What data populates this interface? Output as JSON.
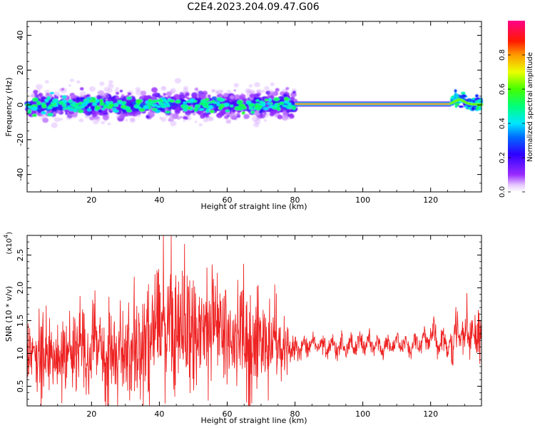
{
  "figure_title": "C2E4.2023.204.09.47.G06",
  "chart_data": [
    {
      "type": "heatmap",
      "xlabel": "Height of straight line (km)",
      "ylabel": "Frequency (Hz)",
      "xlim": [
        1,
        135
      ],
      "ylim": [
        -50,
        48
      ],
      "xticks": [
        20,
        40,
        60,
        80,
        100,
        120
      ],
      "yticks": [
        -40,
        -20,
        0,
        20,
        40
      ],
      "colorbar": {
        "label": "Normalized spectral amplitude",
        "range": [
          0,
          1
        ],
        "ticks": [
          0.0,
          0.2,
          0.4,
          0.6,
          0.8
        ],
        "colormap": "rainbow (white-purple-blue-cyan-green-yellow-red-magenta)"
      },
      "segments": [
        {
          "x": [
            1,
            80
          ],
          "center_freq": 0,
          "spread": 6,
          "character": "noisy broadband signal centered near 0 Hz"
        },
        {
          "x": [
            80,
            126
          ],
          "center_freq": 0.5,
          "spread": 1,
          "character": "narrow strong tone at ~0 Hz"
        },
        {
          "x": [
            126,
            135
          ],
          "center_freq": 2,
          "spread": 3,
          "character": "slightly broadened tone near 0-4 Hz"
        }
      ]
    },
    {
      "type": "line",
      "xlabel": "Height of straight line (km)",
      "ylabel": "SNR (10 * v/v)",
      "y_multiplier": "(x10",
      "y_multiplier_exp": "4",
      "y_multiplier_close": ")",
      "xlim": [
        1,
        135
      ],
      "ylim": [
        0.2,
        2.8
      ],
      "xticks": [
        20,
        40,
        60,
        80,
        100,
        120
      ],
      "yticks": [
        0.5,
        1.0,
        1.5,
        2.0,
        2.5
      ],
      "series": [
        {
          "color": "#ee2222",
          "envelope_x": [
            1,
            5,
            10,
            15,
            18,
            20,
            25,
            30,
            35,
            40,
            43,
            45,
            50,
            55,
            60,
            65,
            70,
            75,
            80,
            85,
            90,
            95,
            100,
            105,
            110,
            115,
            120,
            125,
            130,
            135
          ],
          "envelope_mean": [
            1.0,
            1.0,
            0.95,
            1.0,
            1.15,
            1.1,
            1.0,
            0.95,
            1.1,
            1.35,
            1.5,
            1.3,
            1.35,
            1.4,
            1.2,
            1.15,
            1.2,
            1.1,
            1.05,
            1.15,
            1.1,
            1.1,
            1.15,
            1.1,
            1.15,
            1.1,
            1.25,
            1.15,
            1.3,
            1.3
          ],
          "envelope_amp": [
            0.35,
            0.45,
            0.4,
            0.4,
            0.55,
            0.45,
            0.45,
            0.5,
            0.55,
            0.75,
            0.85,
            0.7,
            0.65,
            0.6,
            0.55,
            0.6,
            0.5,
            0.35,
            0.2,
            0.12,
            0.15,
            0.15,
            0.15,
            0.15,
            0.15,
            0.15,
            0.2,
            0.2,
            0.25,
            0.25
          ],
          "peak": {
            "x": 43.5,
            "y": 2.8
          }
        }
      ]
    }
  ]
}
